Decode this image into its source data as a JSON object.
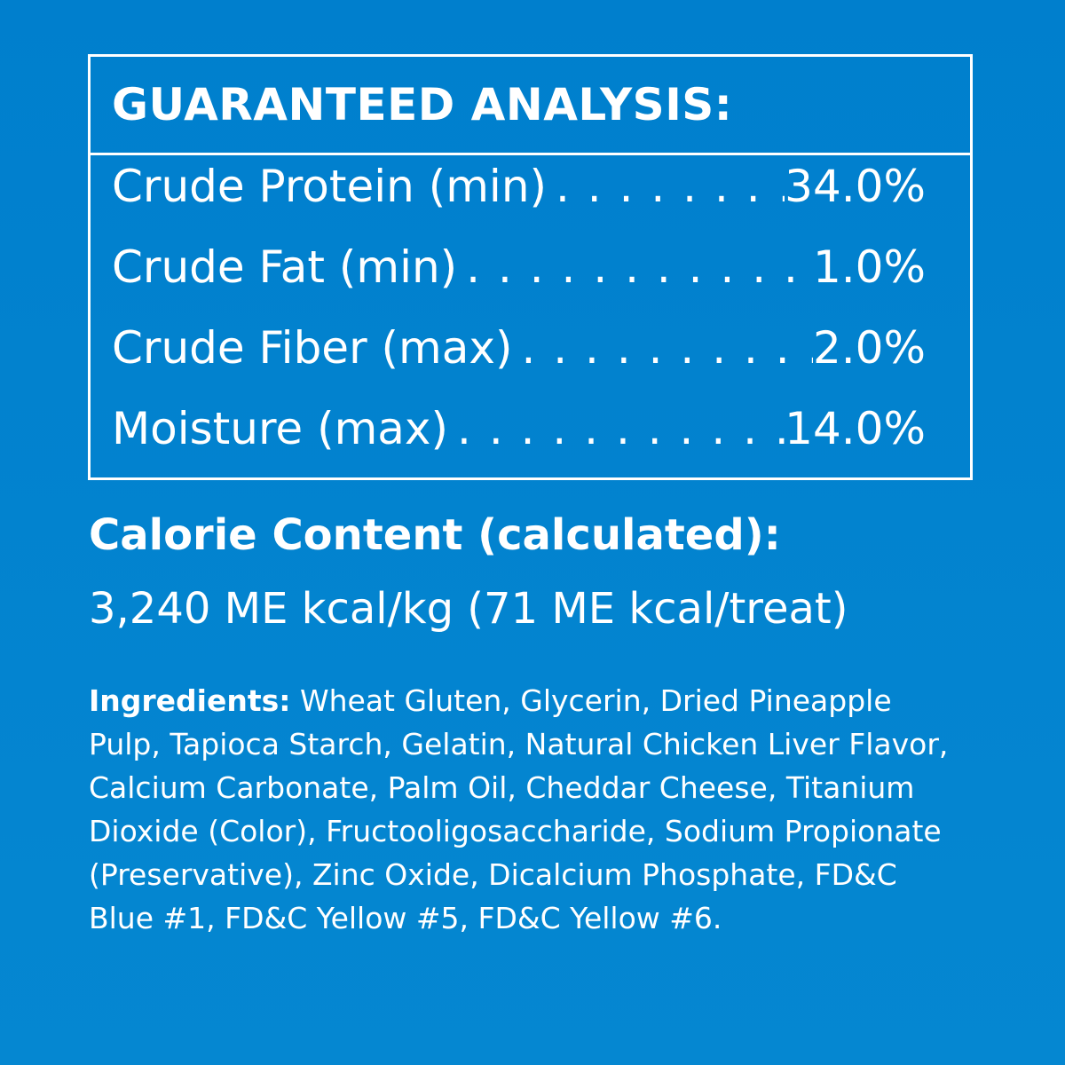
{
  "analysis": {
    "title": "GUARANTEED ANALYSIS:",
    "rows": [
      {
        "name": "Crude Protein (min)",
        "value": "34.0%"
      },
      {
        "name": "Crude Fat (min)",
        "value": "1.0%"
      },
      {
        "name": "Crude Fiber (max)",
        "value": "2.0%"
      },
      {
        "name": "Moisture (max)",
        "value": "14.0%"
      }
    ]
  },
  "calorie": {
    "heading": "Calorie Content (calculated):",
    "value": "3,240 ME kcal/kg (71 ME kcal/treat)"
  },
  "ingredients": {
    "label": "Ingredients:",
    "text": " Wheat Gluten, Glycerin, Dried Pineapple Pulp, Tapioca Starch, Gelatin, Natural Chicken Liver Flavor, Calcium Carbonate, Palm Oil, Cheddar Cheese, Titanium Dioxide (Color), Fructooligosaccharide, Sodium Propionate (Preservative), Zinc Oxide, Dicalcium Phosphate, FD&C Blue #1, FD&C Yellow #5, FD&C Yellow #6."
  },
  "colors": {
    "background": "#0382ce",
    "text": "#ffffff"
  }
}
